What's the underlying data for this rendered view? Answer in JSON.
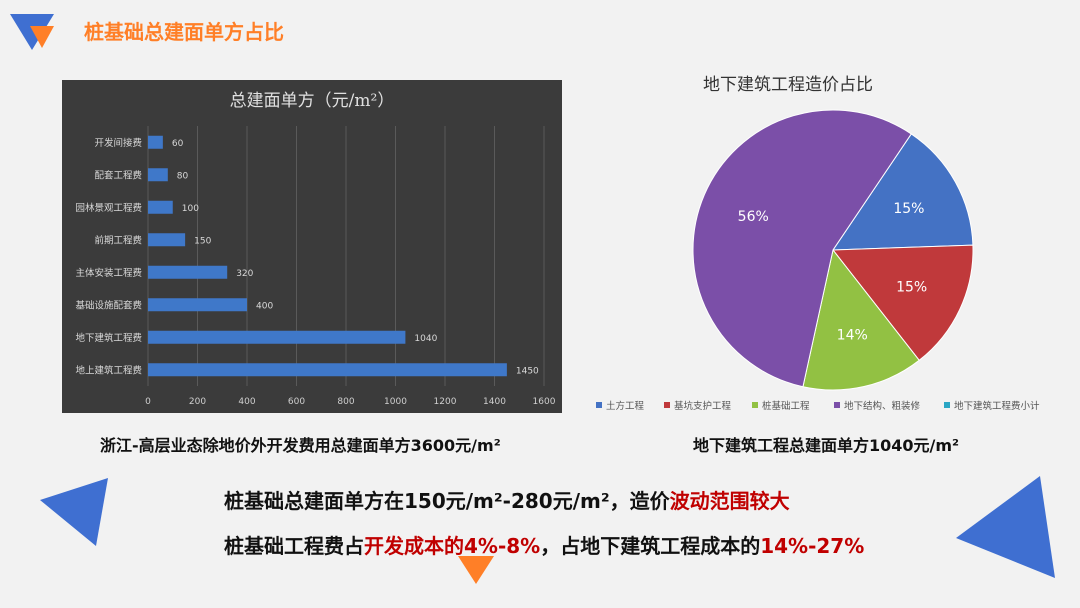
{
  "header": {
    "title": "桩基础总建面单方占比"
  },
  "colors": {
    "accent_orange": "#ff7f27",
    "accent_blue": "#3f6fd1",
    "bar_blue": "#3f78c9",
    "panel_bg": "#3b3b3b"
  },
  "chart_data": [
    {
      "type": "bar",
      "orientation": "horizontal",
      "title": "总建面单方（元/m²）",
      "categories": [
        "开发间接费",
        "配套工程费",
        "园林景观工程费",
        "前期工程费",
        "主体安装工程费",
        "基础设施配套费",
        "地下建筑工程费",
        "地上建筑工程费"
      ],
      "values": [
        60,
        80,
        100,
        150,
        320,
        400,
        1040,
        1450
      ],
      "xlim": [
        0,
        1600
      ],
      "xticks": [
        "0",
        "200",
        "400",
        "600",
        "800",
        "1000",
        "1200",
        "1400",
        "1600"
      ],
      "grid": true
    },
    {
      "type": "pie",
      "title": "地下建筑工程造价占比",
      "labels": [
        "土方工程",
        "基坑支护工程",
        "桩基础工程",
        "地下结构、粗装修",
        "地下建筑工程费小计"
      ],
      "values": [
        15,
        15,
        14,
        56,
        0
      ],
      "value_labels": [
        "15%",
        "15%",
        "14%",
        "56%",
        ""
      ],
      "colors": [
        "#4472c4",
        "#c0393b",
        "#92c143",
        "#7b4fa8",
        "#2ba6c4"
      ],
      "legend": "bottom"
    }
  ],
  "captions": {
    "left": "浙江-高层业态除地价外开发费用总建面单方3600元/m²",
    "right": "地下建筑工程总建面单方1040元/m²"
  },
  "summary": {
    "line1_a": "桩基础总建面单方在150元/m²-280元/m²，造价",
    "line1_b": "波动范围较大",
    "line2_a": "桩基础工程费占",
    "line2_b": "开发成本的4%-8%",
    "line2_c": "，占地下建筑工程成本的",
    "line2_d": "14%-27%"
  }
}
